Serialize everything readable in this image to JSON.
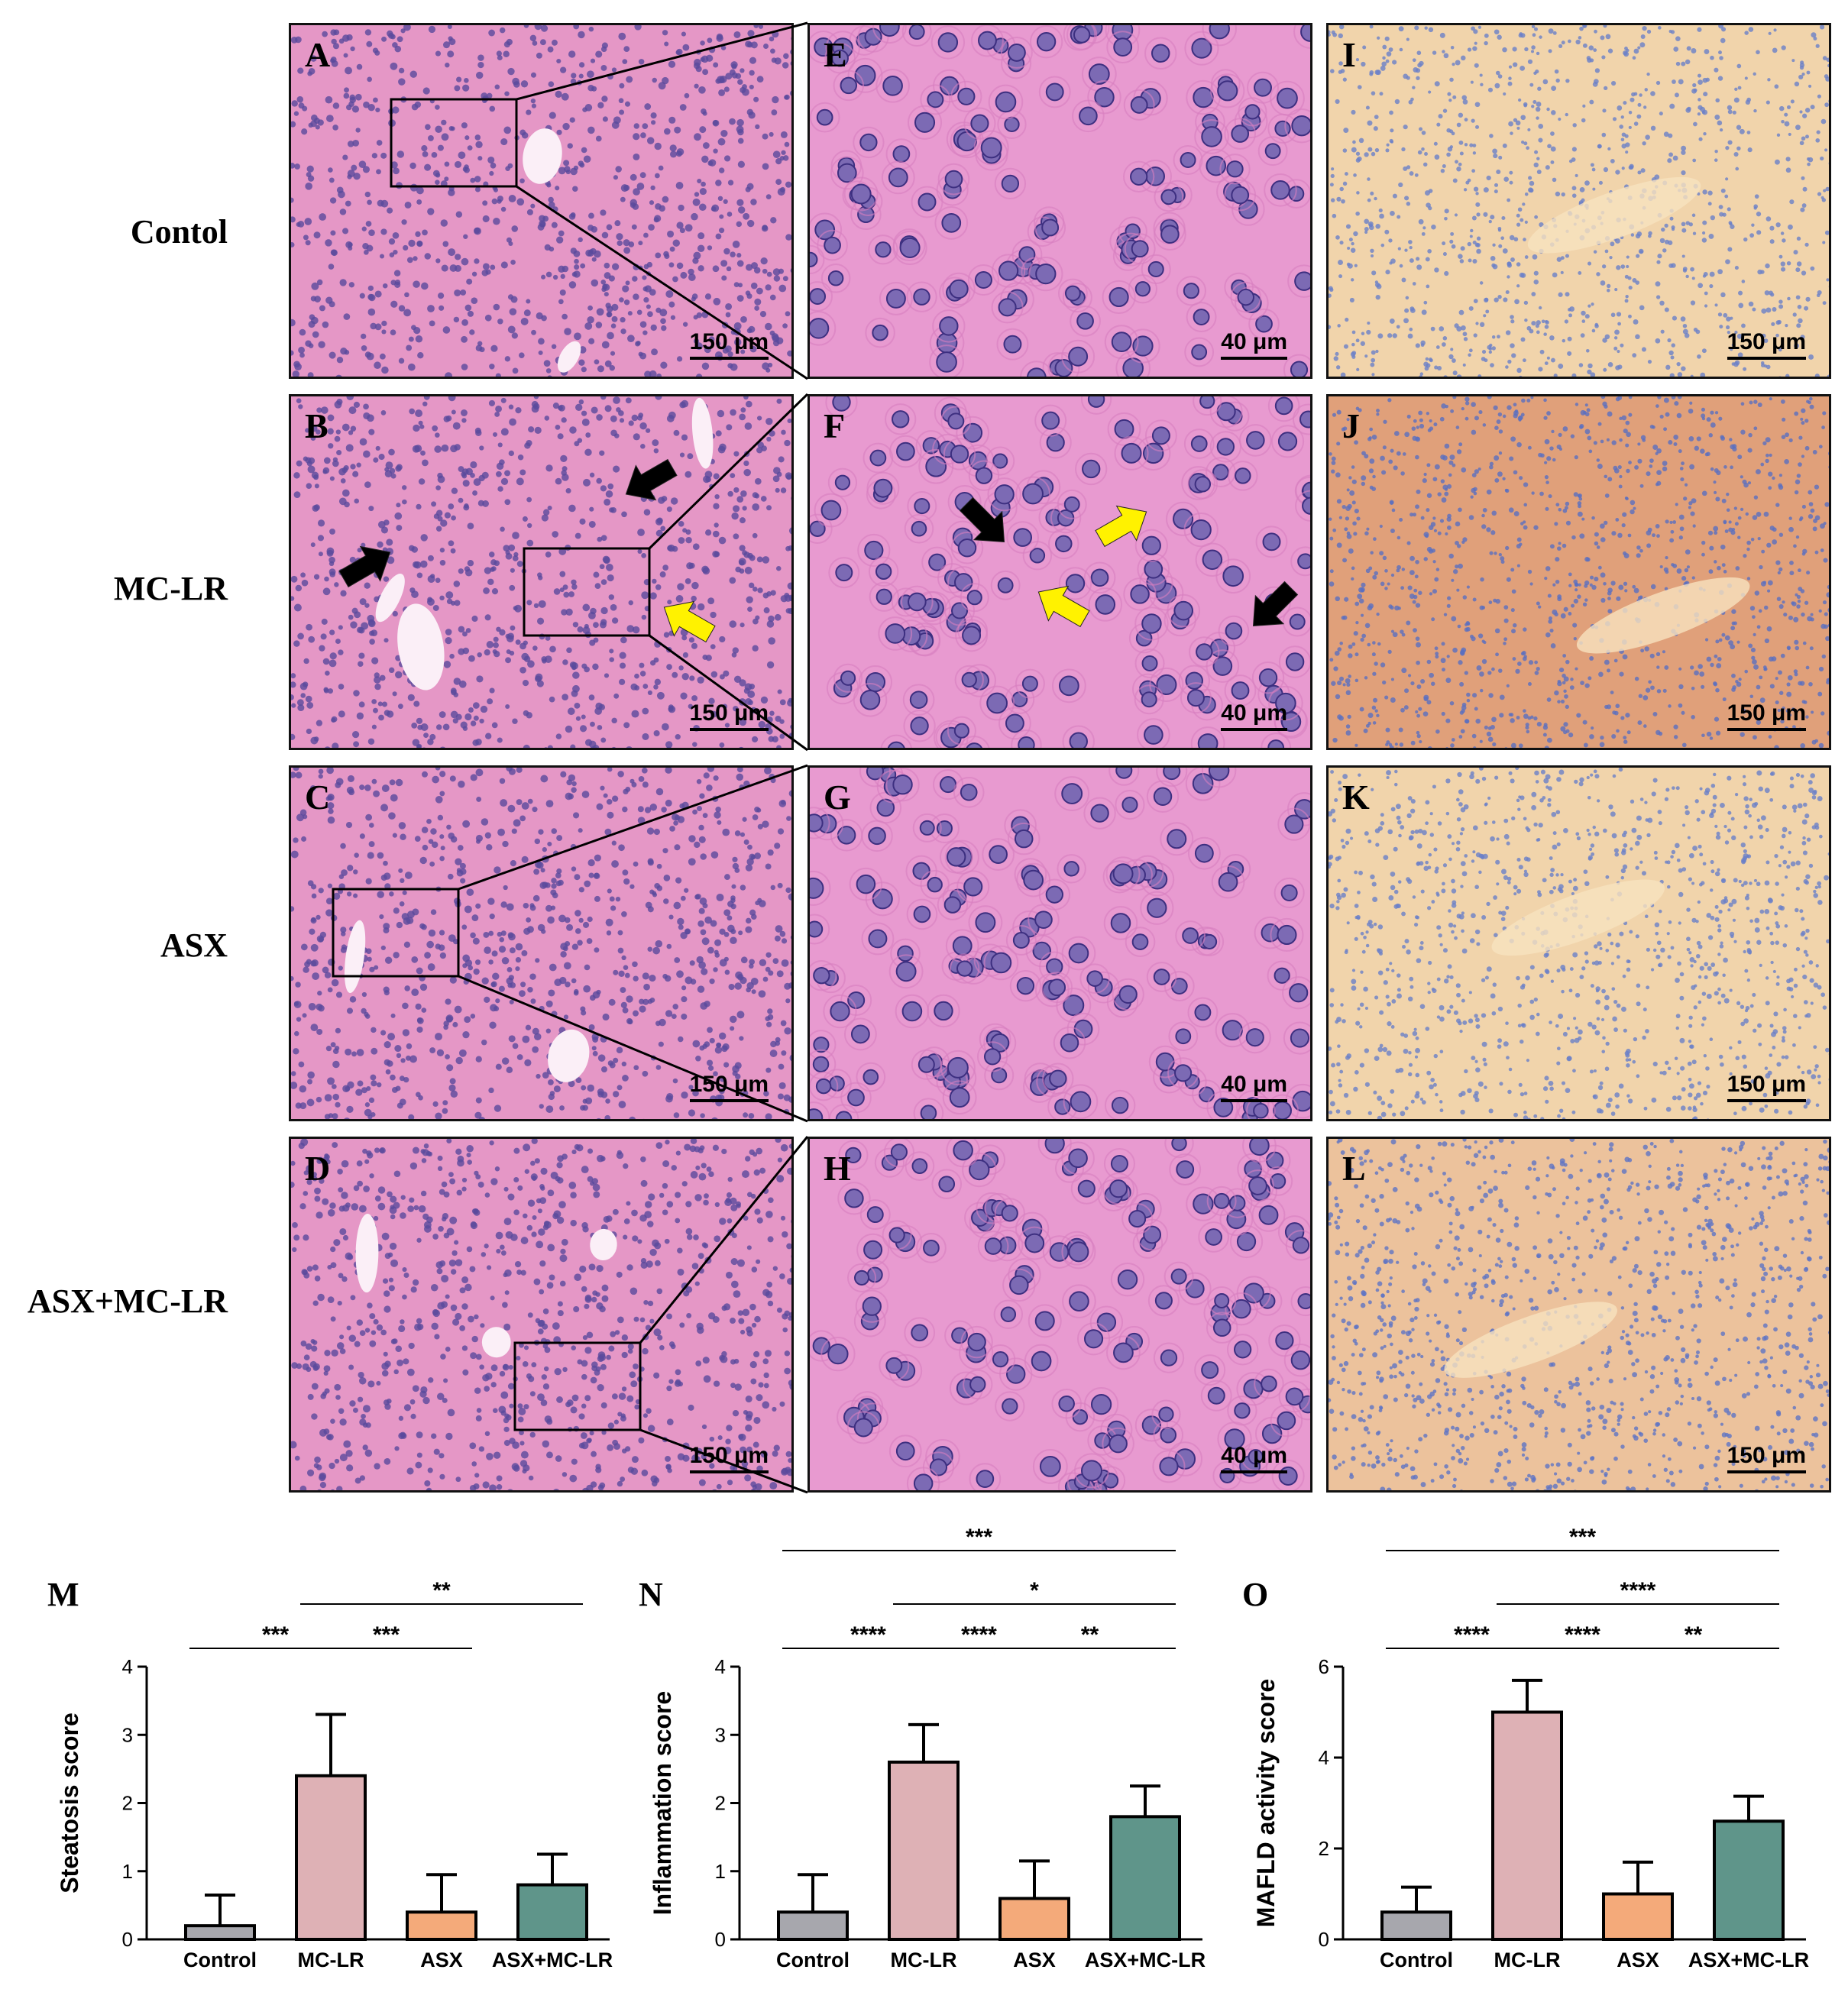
{
  "row_labels": [
    "Contol",
    "MC-LR",
    "ASX",
    "ASX+MC-LR"
  ],
  "panels": [
    {
      "label": "A",
      "scale": "150 μm",
      "stain": "he-low"
    },
    {
      "label": "E",
      "scale": "40 μm",
      "stain": "he-high"
    },
    {
      "label": "I",
      "scale": "150 μm",
      "stain": "oil-light"
    },
    {
      "label": "B",
      "scale": "150 μm",
      "stain": "he-low"
    },
    {
      "label": "F",
      "scale": "40 μm",
      "stain": "he-high"
    },
    {
      "label": "J",
      "scale": "150 μm",
      "stain": "oil-dark"
    },
    {
      "label": "C",
      "scale": "150 μm",
      "stain": "he-low"
    },
    {
      "label": "G",
      "scale": "40 μm",
      "stain": "he-high"
    },
    {
      "label": "K",
      "scale": "150 μm",
      "stain": "oil-light"
    },
    {
      "label": "D",
      "scale": "150 μm",
      "stain": "he-low"
    },
    {
      "label": "H",
      "scale": "40 μm",
      "stain": "he-high"
    },
    {
      "label": "L",
      "scale": "150 μm",
      "stain": "oil-mid"
    }
  ],
  "colors": {
    "he_bg": "#e597c6",
    "he_nucleus": "#5a4a9c",
    "oil_light": "#f1d4ab",
    "oil_dark": "#e0a07a",
    "arrow_black": "#000000",
    "arrow_yellow": "#fff200",
    "bar_control": "#a7a7ad",
    "bar_mclr": "#deb1b5",
    "bar_asx": "#f4aa7a",
    "bar_asx_mclr": "#5f958a"
  },
  "chart_data": [
    {
      "panel_label": "M",
      "type": "bar",
      "categories": [
        "Control",
        "MC-LR",
        "ASX",
        "ASX+MC-LR"
      ],
      "values": [
        0.2,
        2.4,
        0.4,
        0.8
      ],
      "errors": [
        0.45,
        0.9,
        0.55,
        0.45
      ],
      "ylabel": "Steatosis score",
      "ylim": [
        0,
        4
      ],
      "yticks": [
        "0",
        "1",
        "2",
        "3",
        "4"
      ],
      "significance": [
        {
          "from": 0,
          "to": 1,
          "stars": "***",
          "level": 1
        },
        {
          "from": 1,
          "to": 2,
          "stars": "***",
          "level": 1
        },
        {
          "from": 1,
          "to": 3,
          "stars": "**",
          "level": 2
        }
      ]
    },
    {
      "panel_label": "N",
      "type": "bar",
      "categories": [
        "Control",
        "MC-LR",
        "ASX",
        "ASX+MC-LR"
      ],
      "values": [
        0.4,
        2.6,
        0.6,
        1.8
      ],
      "errors": [
        0.55,
        0.55,
        0.55,
        0.45
      ],
      "ylabel": "Inflammation score",
      "ylim": [
        0,
        4
      ],
      "yticks": [
        "0",
        "1",
        "2",
        "3",
        "4"
      ],
      "significance": [
        {
          "from": 0,
          "to": 1,
          "stars": "****",
          "level": 1
        },
        {
          "from": 1,
          "to": 2,
          "stars": "****",
          "level": 1
        },
        {
          "from": 2,
          "to": 3,
          "stars": "**",
          "level": 1
        },
        {
          "from": 1,
          "to": 3,
          "stars": "*",
          "level": 2
        },
        {
          "from": 0,
          "to": 3,
          "stars": "***",
          "level": 3
        }
      ]
    },
    {
      "panel_label": "O",
      "type": "bar",
      "categories": [
        "Control",
        "MC-LR",
        "ASX",
        "ASX+MC-LR"
      ],
      "values": [
        0.6,
        5.0,
        1.0,
        2.6
      ],
      "errors": [
        0.55,
        0.7,
        0.7,
        0.55
      ],
      "ylabel": "MAFLD activity score",
      "ylim": [
        0,
        6
      ],
      "yticks": [
        "0",
        "2",
        "4",
        "6"
      ],
      "significance": [
        {
          "from": 0,
          "to": 1,
          "stars": "****",
          "level": 1
        },
        {
          "from": 1,
          "to": 2,
          "stars": "****",
          "level": 1
        },
        {
          "from": 2,
          "to": 3,
          "stars": "**",
          "level": 1
        },
        {
          "from": 1,
          "to": 3,
          "stars": "****",
          "level": 2
        },
        {
          "from": 0,
          "to": 3,
          "stars": "***",
          "level": 3
        }
      ]
    }
  ]
}
